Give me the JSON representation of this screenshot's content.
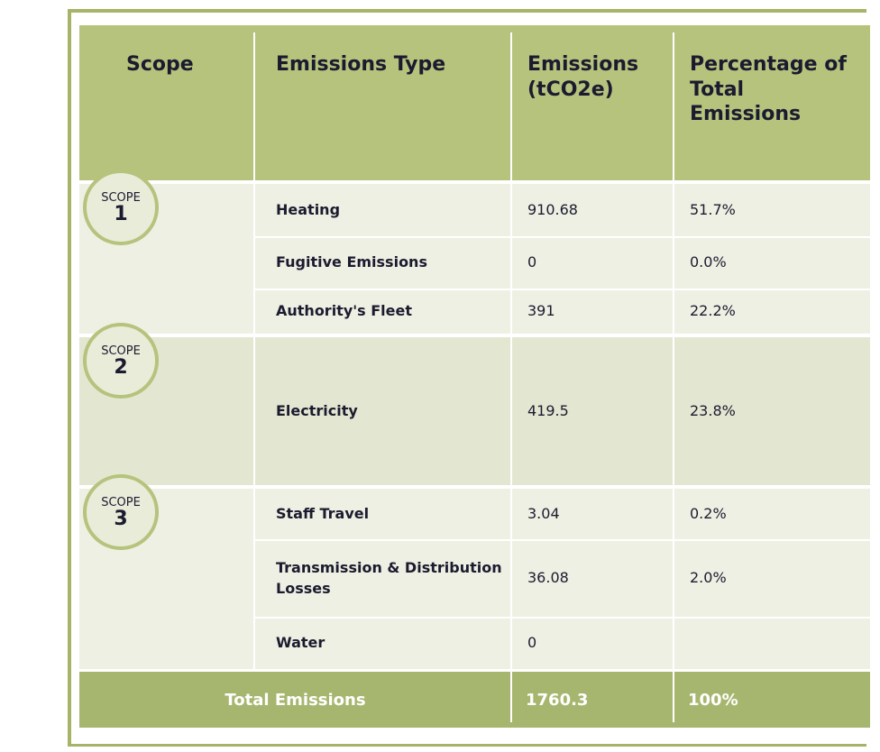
{
  "header": [
    "Scope",
    "Emissions Type",
    "Emissions (tCO2e)",
    "Percentage of Total Emissions"
  ],
  "scopes": [
    {
      "label": "SCOPE",
      "number": "1",
      "rows": [
        [
          "Heating",
          "910.68",
          "51.7%"
        ],
        [
          "Fugitive Emissions",
          "0",
          "0.0%"
        ],
        [
          "Authority's Fleet",
          "391",
          "22.2%"
        ]
      ]
    },
    {
      "label": "SCOPE",
      "number": "2",
      "rows": [
        [
          "Electricity",
          "419.5",
          "23.8%"
        ]
      ]
    },
    {
      "label": "SCOPE",
      "number": "3",
      "rows": [
        [
          "Staff Travel",
          "3.04",
          "0.2%"
        ],
        [
          "Transmission & Distribution Losses",
          "36.08",
          "2.0%"
        ],
        [
          "Water",
          "0"
        ]
      ]
    }
  ],
  "total": [
    "Total Emissions",
    "1760.3",
    "100%"
  ]
}
